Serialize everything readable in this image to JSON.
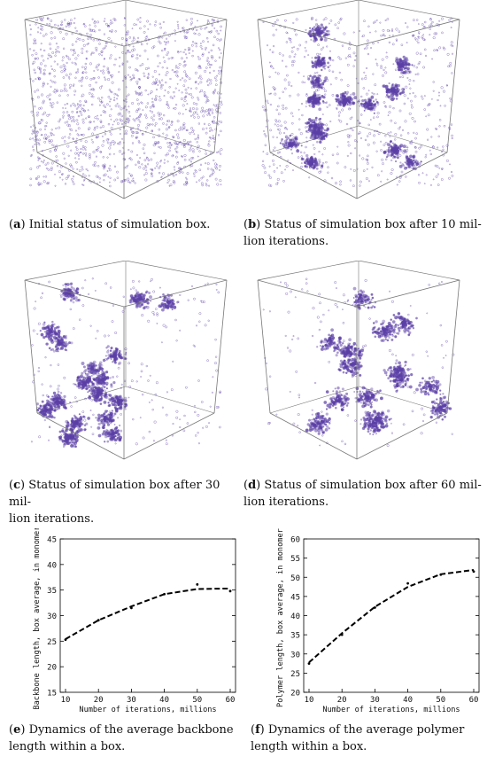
{
  "colors": {
    "dots": "#5b3fa6",
    "edges": "#777777",
    "line": "#000000"
  },
  "panels": {
    "a": {
      "letter": "a",
      "text": "Initial status of simulation box."
    },
    "b": {
      "letter": "b",
      "text": "Status of simulation box after 10 mil-",
      "text2": "lion iterations."
    },
    "c": {
      "letter": "c",
      "text": "Status of simulation box after 30 mil-",
      "text2": "lion iterations."
    },
    "d": {
      "letter": "d",
      "text": "Status of simulation box after 60 mil-",
      "text2": "lion iterations."
    },
    "e": {
      "letter": "e",
      "text": "Dynamics of the average backbone",
      "text2": "length within a box."
    },
    "f": {
      "letter": "f",
      "text": "Dynamics of the average polymer",
      "text2": "length within a box."
    }
  },
  "chart_data": [
    {
      "type": "line",
      "xlabel": "Number of iterations, millions",
      "ylabel": "Backbone length, box average, in monomers",
      "x": [
        10,
        20,
        30,
        40,
        50,
        60
      ],
      "xlim": [
        10,
        60
      ],
      "xticks": [
        "10",
        "20",
        "30",
        "40",
        "50",
        "60"
      ],
      "ylim": [
        15,
        45
      ],
      "yticks": [
        "15",
        "20",
        "25",
        "30",
        "35",
        "40",
        "45"
      ],
      "series": [
        {
          "values": [
            25.4,
            29.1,
            31.8,
            34.2,
            35.2,
            35.3
          ]
        }
      ],
      "points": [
        [
          10,
          25.3
        ],
        [
          20,
          29.1
        ],
        [
          30,
          31.5
        ],
        [
          40,
          34.2
        ],
        [
          50,
          36.1
        ],
        [
          60,
          34.8
        ]
      ],
      "grid": false
    },
    {
      "type": "line",
      "xlabel": "Number of iterations, millions",
      "ylabel": "Polymer length, box average, in monomers",
      "x": [
        10,
        20,
        30,
        40,
        50,
        60
      ],
      "xlim": [
        10,
        60
      ],
      "xticks": [
        "10",
        "20",
        "30",
        "40",
        "50",
        "60"
      ],
      "ylim": [
        20,
        60
      ],
      "yticks": [
        "20",
        "25",
        "30",
        "35",
        "40",
        "45",
        "50",
        "55",
        "60"
      ],
      "series": [
        {
          "values": [
            27.8,
            35.4,
            42.3,
            47.5,
            50.8,
            51.9
          ]
        }
      ],
      "points": [
        [
          10,
          27.5
        ],
        [
          20,
          35.0
        ],
        [
          30,
          42.1
        ],
        [
          40,
          48.4
        ],
        [
          50,
          50.7
        ],
        [
          60,
          51.5
        ]
      ],
      "grid": false
    }
  ]
}
